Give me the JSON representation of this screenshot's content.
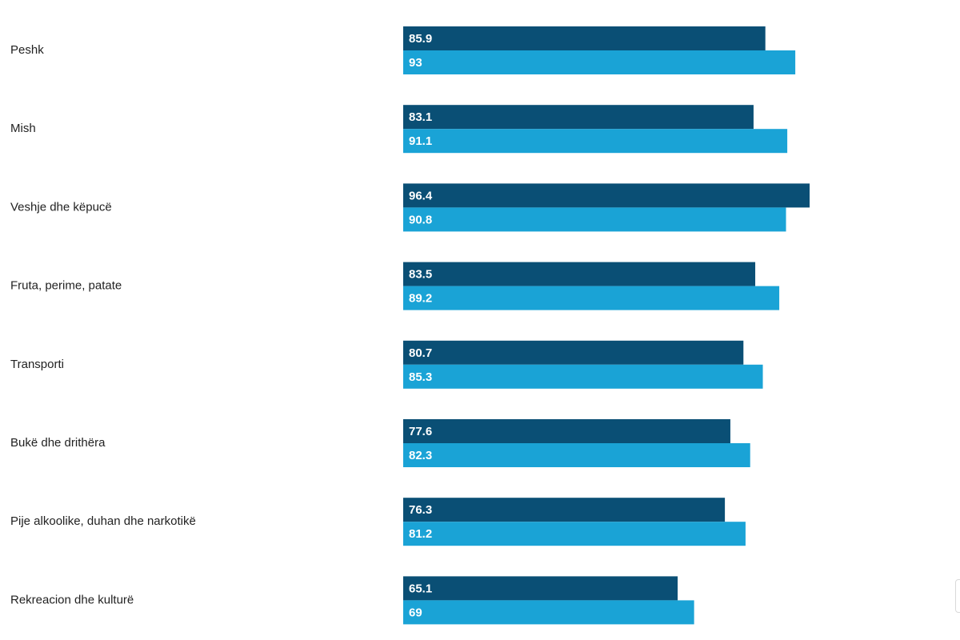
{
  "chart_data": {
    "type": "bar",
    "orientation": "horizontal",
    "categories": [
      "Peshk",
      "Mish",
      "Veshje dhe këpucë",
      "Fruta, perime, patate",
      "Transporti",
      "Bukë dhe drithëra",
      "Pije alkoolike, duhan dhe narkotikë",
      "Rekreacion dhe kulturë"
    ],
    "series": [
      {
        "color": "#0a4f75",
        "values": [
          85.9,
          83.1,
          96.4,
          83.5,
          80.7,
          77.6,
          76.3,
          65.1
        ],
        "labels": [
          "85.9",
          "83.1",
          "96.4",
          "83.5",
          "80.7",
          "77.6",
          "76.3",
          "65.1"
        ]
      },
      {
        "color": "#1aa3d6",
        "values": [
          93,
          91.1,
          90.8,
          89.2,
          85.3,
          82.3,
          81.2,
          69
        ],
        "labels": [
          "93",
          "91.1",
          "90.8",
          "89.2",
          "85.3",
          "82.3",
          "81.2",
          "69"
        ]
      }
    ],
    "xlim": [
      0,
      100
    ],
    "grid": false,
    "legend": "none",
    "title": "",
    "xlabel": "",
    "ylabel": ""
  }
}
